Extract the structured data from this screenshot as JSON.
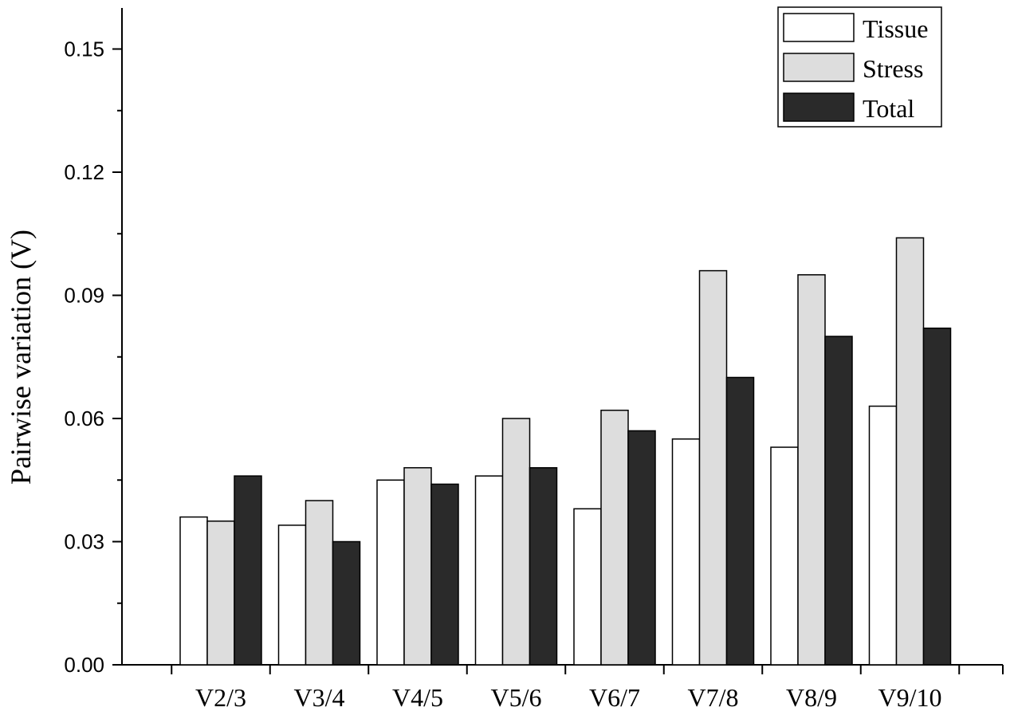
{
  "chart_data": {
    "type": "bar",
    "title": "",
    "xlabel": "",
    "ylabel": "Pairwise variation (V)",
    "ylim": [
      0,
      0.16
    ],
    "yticks": [
      "0.00",
      "0.03",
      "0.06",
      "0.09",
      "0.12",
      "0.15"
    ],
    "ytick_values": [
      0,
      0.03,
      0.06,
      0.09,
      0.12,
      0.15
    ],
    "categories": [
      "V2/3",
      "V3/4",
      "V4/5",
      "V5/6",
      "V6/7",
      "V7/8",
      "V8/9",
      "V9/10"
    ],
    "series": [
      {
        "name": "Tissue",
        "color": "#ffffff",
        "values": [
          0.036,
          0.034,
          0.045,
          0.046,
          0.038,
          0.055,
          0.053,
          0.063
        ]
      },
      {
        "name": "Stress",
        "color": "#dddddd",
        "values": [
          0.035,
          0.04,
          0.048,
          0.06,
          0.062,
          0.096,
          0.095,
          0.104
        ]
      },
      {
        "name": "Total",
        "color": "#2a2a2a",
        "values": [
          0.046,
          0.03,
          0.044,
          0.048,
          0.057,
          0.07,
          0.08,
          0.082
        ]
      }
    ],
    "grid": false,
    "legend_position": "top-right"
  }
}
